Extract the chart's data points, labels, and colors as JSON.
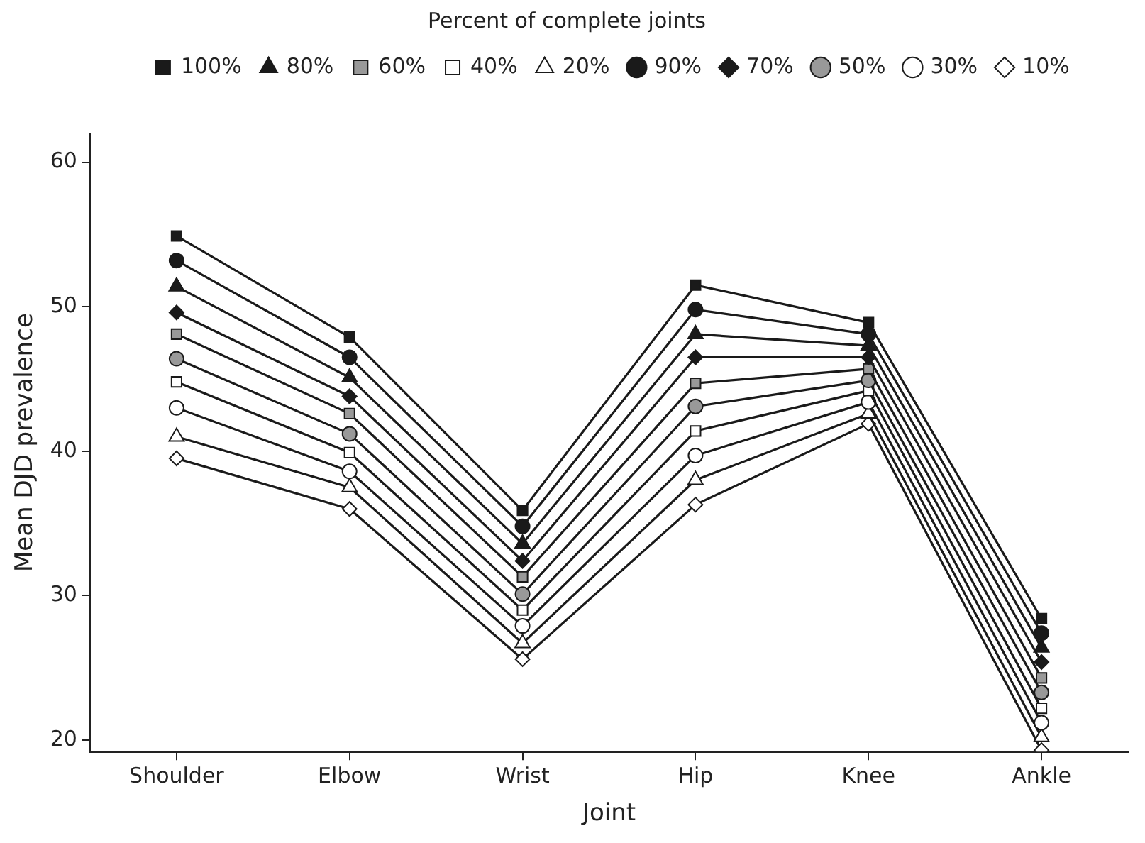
{
  "chart_data": {
    "type": "line",
    "xlabel": "Joint",
    "ylabel": "Mean DJD prevalence",
    "legend_title": "Percent of complete joints",
    "categories": [
      "Shoulder",
      "Elbow",
      "Wrist",
      "Hip",
      "Knee",
      "Ankle"
    ],
    "ylim": [
      19.2,
      62
    ],
    "yticks": [
      20,
      30,
      40,
      50,
      60
    ],
    "grid": false,
    "legend": "top",
    "line_style": "solid",
    "series": [
      {
        "name": "100%",
        "color": "#1a1a1a",
        "marker": "square",
        "values": [
          54.9,
          47.9,
          35.9,
          51.5,
          48.9,
          28.4
        ]
      },
      {
        "name": "90%",
        "color": "#1a1a1a",
        "marker": "circle",
        "values": [
          53.2,
          46.5,
          34.8,
          49.8,
          48.1,
          27.4
        ]
      },
      {
        "name": "80%",
        "color": "#1a1a1a",
        "marker": "triangle",
        "values": [
          51.4,
          45.1,
          33.6,
          48.1,
          47.3,
          26.4
        ]
      },
      {
        "name": "70%",
        "color": "#1a1a1a",
        "marker": "diamond",
        "values": [
          49.6,
          43.8,
          32.4,
          46.5,
          46.5,
          25.4
        ]
      },
      {
        "name": "60%",
        "color": "#999999",
        "marker": "square",
        "values": [
          48.1,
          42.6,
          31.3,
          44.7,
          45.7,
          24.3
        ]
      },
      {
        "name": "50%",
        "color": "#999999",
        "marker": "circle",
        "values": [
          46.4,
          41.2,
          30.1,
          43.1,
          44.9,
          23.3
        ]
      },
      {
        "name": "40%",
        "color": "#ffffff",
        "marker": "square",
        "values": [
          44.8,
          39.9,
          29.0,
          41.4,
          44.2,
          22.2
        ]
      },
      {
        "name": "30%",
        "color": "#ffffff",
        "marker": "circle",
        "values": [
          43.0,
          38.6,
          27.9,
          39.7,
          43.4,
          21.2
        ]
      },
      {
        "name": "20%",
        "color": "#ffffff",
        "marker": "triangle",
        "values": [
          41.0,
          37.5,
          26.7,
          38.0,
          42.6,
          20.2
        ]
      },
      {
        "name": "10%",
        "color": "#ffffff",
        "marker": "diamond",
        "values": [
          39.5,
          36.0,
          25.6,
          36.3,
          41.9,
          19.3
        ]
      }
    ]
  }
}
